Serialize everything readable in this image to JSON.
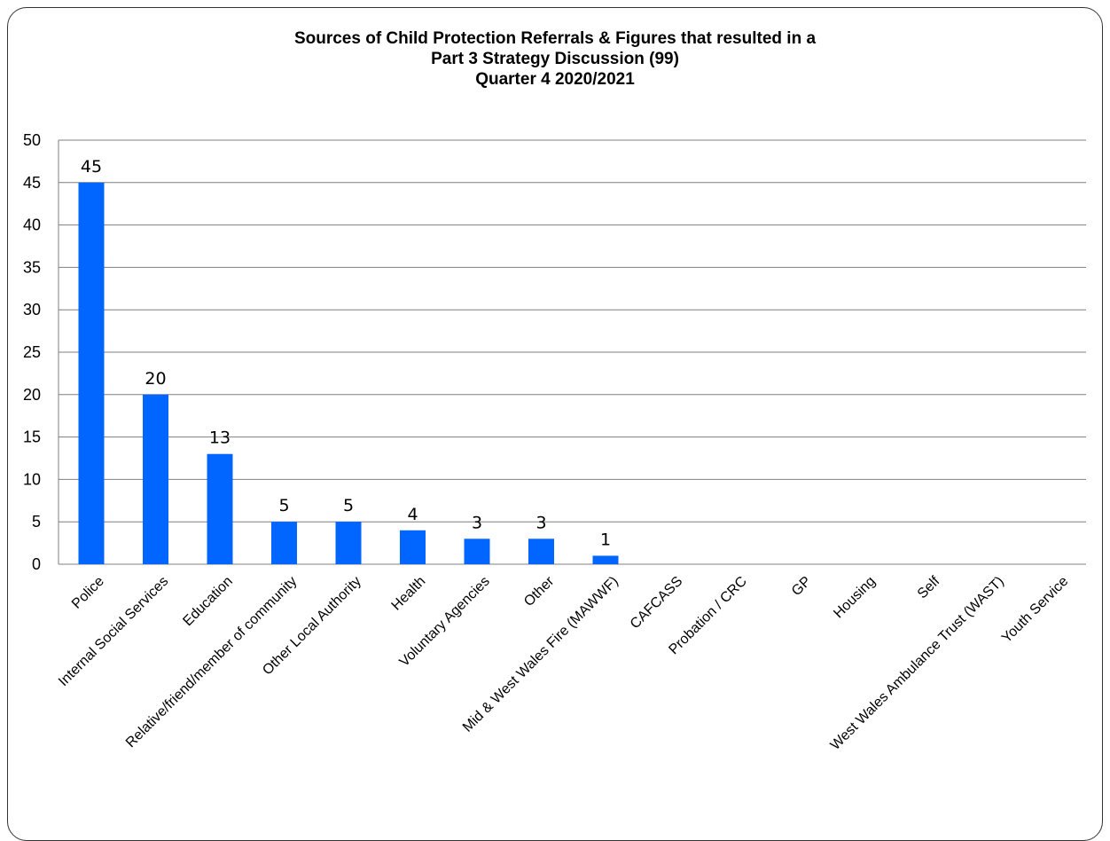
{
  "chart_data": {
    "type": "bar",
    "title": [
      "Sources of Child Protection Referrals & Figures that resulted in a",
      "Part 3 Strategy Discussion (99)",
      "Quarter 4 2020/2021"
    ],
    "categories": [
      "Police",
      "Internal Social Services",
      "Education",
      "Relative/friend/member of community",
      "Other Local Authority",
      "Health",
      "Voluntary Agencies",
      "Other",
      "Mid & West Wales Fire (MAWWF)",
      "CAFCASS",
      "Probation / CRC",
      "GP",
      "Housing",
      "Self",
      "West Wales Ambulance Trust (WAST)",
      "Youth Service"
    ],
    "values": [
      45,
      20,
      13,
      5,
      5,
      4,
      3,
      3,
      1,
      0,
      0,
      0,
      0,
      0,
      0,
      0
    ],
    "data_labels": [
      "45",
      "20",
      "13",
      "5",
      "5",
      "4",
      "3",
      "3",
      "1",
      "",
      "",
      "",
      "",
      "",
      "",
      ""
    ],
    "ylim": [
      0,
      50
    ],
    "yticks": [
      0,
      5,
      10,
      15,
      20,
      25,
      30,
      35,
      40,
      45,
      50
    ],
    "xlabel": "",
    "ylabel": "",
    "grid": true,
    "legend": "none",
    "colors": {
      "bar": "#0066ff",
      "grid": "#7f7f7f",
      "axis": "#7f7f7f"
    }
  }
}
